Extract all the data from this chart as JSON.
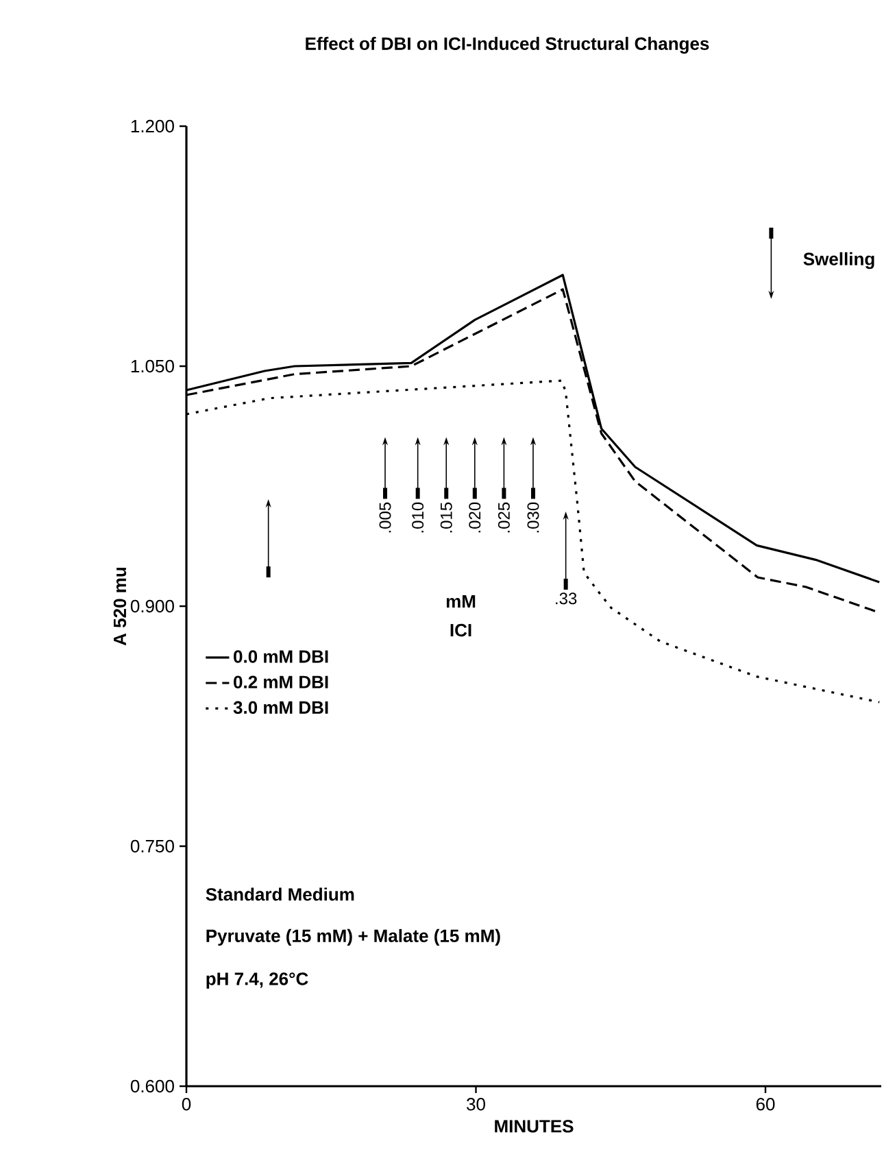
{
  "chart_data": {
    "type": "line",
    "title": "Effect of DBI on ICI-Induced Structural Changes",
    "xlabel": "MINUTES",
    "ylabel": "A 520 mu",
    "xlim": [
      0,
      72
    ],
    "ylim": [
      0.6,
      1.2
    ],
    "xticks": [
      0,
      30,
      60
    ],
    "yticks": [
      {
        "value": 0.6,
        "label": "0.600"
      },
      {
        "value": 0.75,
        "label": "0.750"
      },
      {
        "value": 0.9,
        "label": "0.900"
      },
      {
        "value": 1.05,
        "label": "1.050"
      },
      {
        "value": 1.2,
        "label": "1.200"
      }
    ],
    "legend": "left",
    "grid": false,
    "series": [
      {
        "name": "0.0 mM DBI",
        "color": "#000000",
        "line_style": "solid",
        "x": [
          0,
          8.1,
          11.2,
          23.3,
          29.9,
          39.0,
          43.0,
          46.5,
          59.1,
          65.2,
          71.8
        ],
        "values": [
          1.035,
          1.047,
          1.05,
          1.052,
          1.079,
          1.107,
          1.011,
          0.987,
          0.938,
          0.929,
          0.915
        ]
      },
      {
        "name": "0.2 mM DBI",
        "color": "#000000",
        "line_style": "dashed",
        "x": [
          0,
          11.2,
          23.3,
          39.0,
          43.0,
          46.5,
          59.2,
          64.2,
          71.8
        ],
        "values": [
          1.032,
          1.045,
          1.05,
          1.098,
          1.008,
          0.978,
          0.918,
          0.912,
          0.896
        ]
      },
      {
        "name": "3.0 mM DBI",
        "color": "#000000",
        "line_style": "dotted",
        "x": [
          0,
          8.6,
          38.9,
          39.3,
          40.5,
          41.2,
          42.7,
          44.0,
          49.1,
          59.1,
          71.8
        ],
        "values": [
          1.02,
          1.03,
          1.041,
          1.034,
          0.965,
          0.921,
          0.909,
          0.899,
          0.878,
          0.856,
          0.84
        ]
      }
    ],
    "annotations": [
      ".005",
      ".010",
      ".015",
      ".020",
      ".025",
      ".030",
      ".33",
      "mM",
      "ICI",
      "Swelling",
      "Standard Medium",
      "Pyruvate (15 mM) + Malate (15 mM)",
      "pH 7.4, 26°C"
    ]
  }
}
